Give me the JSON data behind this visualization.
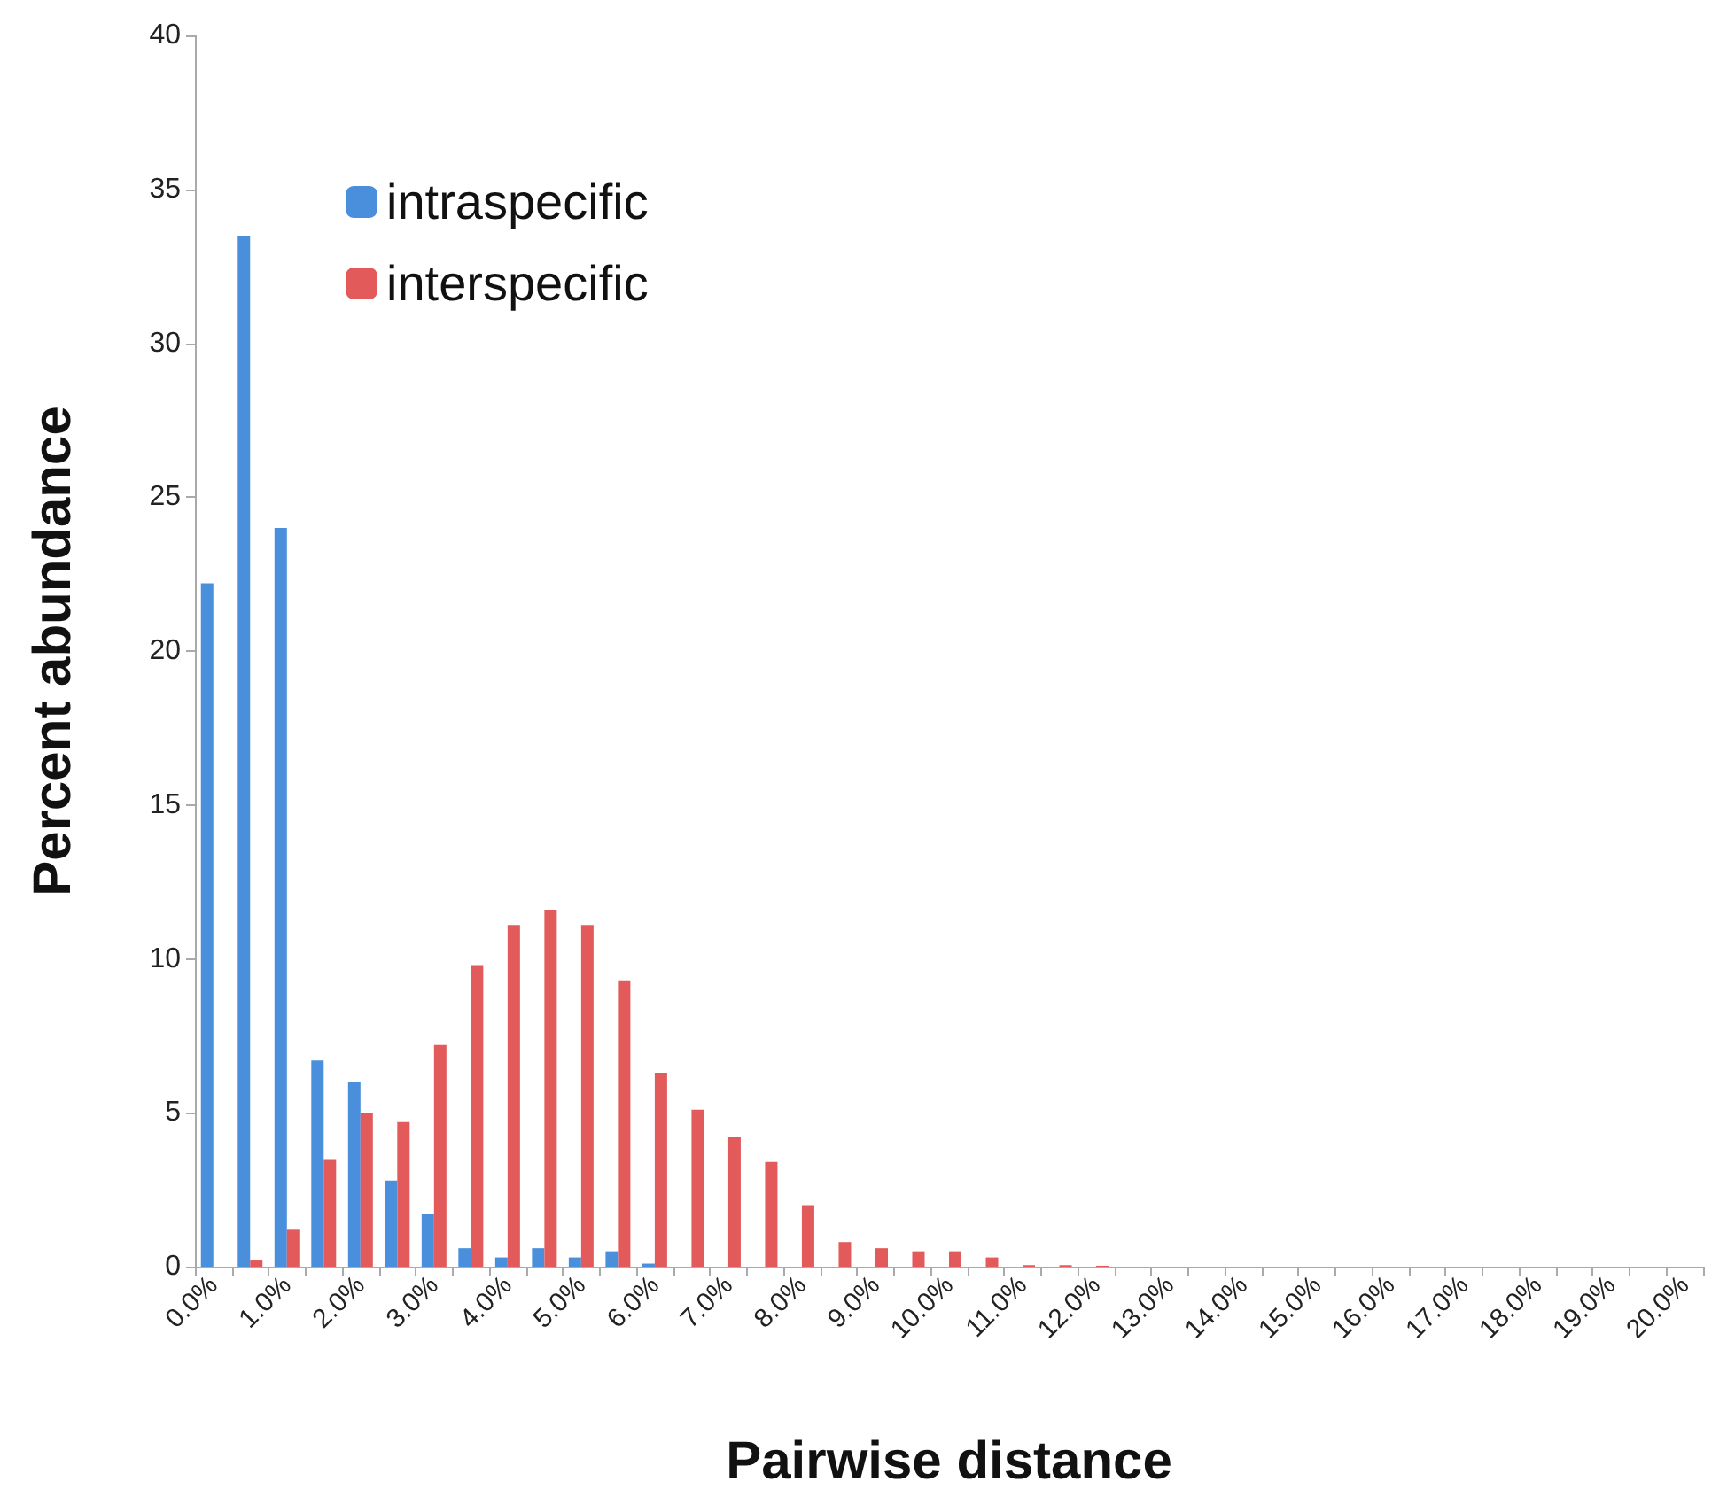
{
  "chart_data": {
    "type": "bar",
    "xlabel": "Pairwise distance",
    "ylabel": "Percent abundance",
    "categories": [
      "0.0%",
      null,
      "1.0%",
      null,
      "2.0%",
      null,
      "3.0%",
      null,
      "4.0%",
      null,
      "5.0%",
      null,
      "6.0%",
      null,
      "7.0%",
      null,
      "8.0%",
      null,
      "9.0%",
      null,
      "10.0%",
      null,
      "11.0%",
      null,
      "12.0%",
      null,
      "13.0%",
      null,
      "14.0%",
      null,
      "15.0%",
      null,
      "16.0%",
      null,
      "17.0%",
      null,
      "18.0%",
      null,
      "19.0%",
      null,
      "20.0%"
    ],
    "series": [
      {
        "name": "intraspecific",
        "color": "#4a8fdb",
        "values": [
          22.2,
          33.5,
          24,
          6.7,
          6.0,
          2.8,
          1.7,
          0.6,
          0.3,
          0.6,
          0.3,
          0.5,
          0.1,
          0,
          0,
          0,
          0,
          0,
          0,
          0,
          0,
          0,
          0,
          0,
          0,
          0,
          0,
          0,
          0,
          0,
          0,
          0,
          0,
          0,
          0,
          0,
          0,
          0,
          0,
          0,
          0
        ]
      },
      {
        "name": "interspecific",
        "color": "#e35a5a",
        "values": [
          0,
          0.2,
          1.2,
          3.5,
          5.0,
          4.7,
          7.2,
          9.8,
          11.1,
          11.6,
          11.1,
          9.3,
          6.3,
          5.1,
          4.2,
          3.4,
          2.0,
          0.8,
          0.6,
          0.5,
          0.5,
          0.3,
          0.05,
          0.05,
          0.03,
          0,
          0,
          0,
          0,
          0,
          0,
          0,
          0,
          0,
          0,
          0,
          0,
          0,
          0,
          0,
          0
        ]
      }
    ],
    "ylim": [
      0,
      40
    ],
    "yticks": [
      0,
      5,
      10,
      15,
      20,
      25,
      30,
      35,
      40
    ],
    "grid": false,
    "legend": "top left"
  }
}
